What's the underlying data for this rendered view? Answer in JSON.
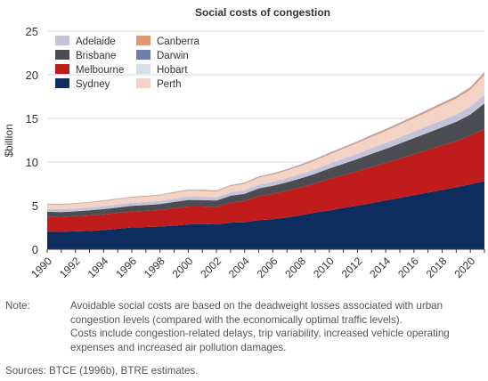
{
  "chart_data": {
    "type": "area",
    "stacked": true,
    "title": "Social costs of congestion",
    "ylabel": "$billion",
    "xlabel": "",
    "x": [
      1990,
      1991,
      1992,
      1993,
      1994,
      1995,
      1996,
      1997,
      1998,
      1999,
      2000,
      2001,
      2002,
      2003,
      2004,
      2005,
      2006,
      2007,
      2008,
      2009,
      2010,
      2011,
      2012,
      2013,
      2014,
      2015,
      2016,
      2017,
      2018,
      2019,
      2020,
      2021
    ],
    "xticks": [
      "1990",
      "1992",
      "1994",
      "1996",
      "1998",
      "2000",
      "2002",
      "2004",
      "2006",
      "2008",
      "2010",
      "2012",
      "2014",
      "2016",
      "2018",
      "2020"
    ],
    "yticks": [
      "0",
      "5",
      "10",
      "15",
      "20",
      "25"
    ],
    "ylim": [
      0,
      25
    ],
    "xlim": [
      1990,
      2021
    ],
    "legend_position": "top-left",
    "grid": true,
    "series": [
      {
        "name": "Sydney",
        "color": "#0d2d5e",
        "values": [
          2.0,
          2.0,
          2.05,
          2.1,
          2.2,
          2.35,
          2.5,
          2.55,
          2.6,
          2.7,
          2.85,
          2.9,
          2.85,
          3.05,
          3.1,
          3.35,
          3.45,
          3.65,
          3.9,
          4.2,
          4.45,
          4.75,
          5.0,
          5.3,
          5.6,
          5.9,
          6.2,
          6.5,
          6.8,
          7.1,
          7.45,
          7.8
        ]
      },
      {
        "name": "Melbourne",
        "color": "#c01c1c",
        "values": [
          1.75,
          1.72,
          1.75,
          1.78,
          1.8,
          1.82,
          1.82,
          1.85,
          1.9,
          2.0,
          2.05,
          2.0,
          2.0,
          2.3,
          2.45,
          2.75,
          2.9,
          3.05,
          3.2,
          3.35,
          3.6,
          3.75,
          3.95,
          4.15,
          4.3,
          4.5,
          4.7,
          4.9,
          5.1,
          5.3,
          5.6,
          6.0
        ]
      },
      {
        "name": "Brisbane",
        "color": "#4b4d52",
        "values": [
          0.55,
          0.55,
          0.55,
          0.58,
          0.6,
          0.62,
          0.65,
          0.66,
          0.68,
          0.72,
          0.75,
          0.74,
          0.73,
          0.78,
          0.8,
          0.88,
          0.92,
          0.97,
          1.03,
          1.1,
          1.2,
          1.3,
          1.4,
          1.5,
          1.6,
          1.72,
          1.84,
          1.96,
          2.08,
          2.2,
          2.4,
          2.9
        ]
      },
      {
        "name": "Adelaide",
        "color": "#c4c3db",
        "values": [
          0.32,
          0.32,
          0.33,
          0.33,
          0.34,
          0.35,
          0.36,
          0.36,
          0.37,
          0.38,
          0.39,
          0.38,
          0.38,
          0.4,
          0.41,
          0.43,
          0.45,
          0.47,
          0.5,
          0.53,
          0.56,
          0.59,
          0.62,
          0.65,
          0.68,
          0.71,
          0.74,
          0.77,
          0.81,
          0.85,
          0.9,
          1.0
        ]
      },
      {
        "name": "Perth",
        "color": "#f3d3c5",
        "values": [
          0.5,
          0.5,
          0.52,
          0.54,
          0.56,
          0.58,
          0.6,
          0.61,
          0.62,
          0.65,
          0.68,
          0.67,
          0.66,
          0.71,
          0.74,
          0.8,
          0.84,
          0.89,
          0.94,
          1.0,
          1.07,
          1.14,
          1.22,
          1.3,
          1.38,
          1.46,
          1.55,
          1.64,
          1.74,
          1.84,
          1.95,
          2.3
        ]
      },
      {
        "name": "Canberra",
        "color": "#e19676",
        "values": [
          0.06,
          0.06,
          0.06,
          0.06,
          0.07,
          0.07,
          0.07,
          0.07,
          0.07,
          0.08,
          0.08,
          0.08,
          0.08,
          0.08,
          0.09,
          0.09,
          0.1,
          0.1,
          0.1,
          0.11,
          0.12,
          0.12,
          0.13,
          0.13,
          0.14,
          0.15,
          0.15,
          0.16,
          0.17,
          0.18,
          0.19,
          0.2
        ]
      },
      {
        "name": "Darwin",
        "color": "#6e7fae",
        "values": [
          0.02,
          0.02,
          0.02,
          0.02,
          0.02,
          0.02,
          0.02,
          0.02,
          0.02,
          0.02,
          0.03,
          0.03,
          0.03,
          0.03,
          0.03,
          0.03,
          0.03,
          0.03,
          0.04,
          0.04,
          0.04,
          0.04,
          0.04,
          0.05,
          0.05,
          0.05,
          0.05,
          0.05,
          0.06,
          0.06,
          0.06,
          0.07
        ]
      },
      {
        "name": "Hobart",
        "color": "#d9dde8",
        "values": [
          0.04,
          0.04,
          0.04,
          0.04,
          0.04,
          0.04,
          0.04,
          0.04,
          0.04,
          0.05,
          0.05,
          0.05,
          0.05,
          0.05,
          0.05,
          0.05,
          0.05,
          0.05,
          0.06,
          0.06,
          0.06,
          0.06,
          0.07,
          0.07,
          0.07,
          0.07,
          0.08,
          0.08,
          0.08,
          0.08,
          0.09,
          0.1
        ]
      }
    ],
    "legend_order": [
      "Adelaide",
      "Canberra",
      "Brisbane",
      "Darwin",
      "Melbourne",
      "Hobart",
      "Sydney",
      "Perth"
    ]
  },
  "note": {
    "label": "Note:",
    "lines": [
      "Avoidable social costs are based on the deadweight losses associated with urban",
      "congestion levels (compared with the economically optimal traffic levels).",
      "Costs include congestion-related delays, trip variability, increased vehicle operating",
      "expenses and increased air pollution damages."
    ]
  },
  "sources": "Sources: BTCE (1996b), BTRE estimates.",
  "colors": {
    "grid": "#d9d9d9",
    "axis_text": "#333333"
  }
}
